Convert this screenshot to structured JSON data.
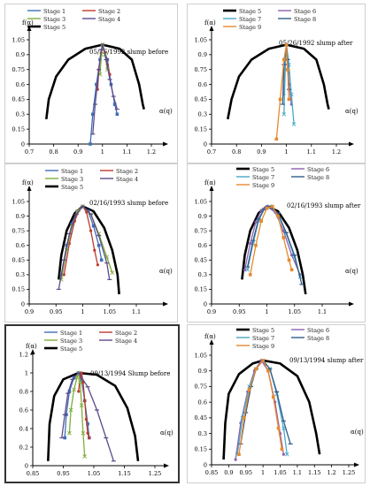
{
  "colors": {
    "Stage 1": "#3f6fb5",
    "Stage 2": "#c0392b",
    "Stage 3": "#7fae3a",
    "Stage 4": "#5d4a8c",
    "Stage 5": "#000000",
    "Stage 6": "#8e5fb0",
    "Stage 7": "#4aa8c6",
    "Stage 8": "#2f5d8a",
    "Stage 9": "#e8892e",
    "axis": "#000000"
  },
  "panels": [
    {
      "title": "05/26/1992 slump before",
      "xlabel": "α(q)",
      "ylabel": "f(α)",
      "legend": [
        [
          "Stage 1",
          "Stage 2"
        ],
        [
          "Stage 3",
          "Stage 4"
        ],
        [
          "Stage 5"
        ]
      ],
      "xticks": [
        "0.7",
        "0.8",
        "0.9",
        "1",
        "1.1",
        "1.2"
      ],
      "yticks": [
        "0",
        "0.15",
        "0.3",
        "0.45",
        "0.6",
        "0.75",
        "0.9",
        "1.05"
      ]
    },
    {
      "title": "05/26/1992 slump after",
      "xlabel": "α(q)",
      "ylabel": "f(α)",
      "legend": [
        [
          "Stage 5",
          "Stage 6"
        ],
        [
          "Stage 7",
          "Stage 8"
        ],
        [
          "Stage 9"
        ]
      ],
      "xticks": [
        "0.7",
        "0.8",
        "0.9",
        "1",
        "1.1",
        "1.2"
      ],
      "yticks": [
        "0",
        "0.15",
        "0.3",
        "0.45",
        "0.6",
        "0.75",
        "0.9",
        "1.05"
      ]
    },
    {
      "title": "02/16/1993 slump before",
      "xlabel": "α(q)",
      "ylabel": "f(α)",
      "legend": [
        [
          "Stage 1",
          "Stage 2"
        ],
        [
          "Stage 3",
          "Stage 4"
        ],
        [
          "Stage 5"
        ]
      ],
      "xticks": [
        "0.9",
        "0.95",
        "1",
        "1.05",
        "1.1"
      ],
      "yticks": [
        "0",
        "0.15",
        "0.3",
        "0.45",
        "0.6",
        "0.75",
        "0.9",
        "1.05"
      ]
    },
    {
      "title": "02/16/1993 slump after",
      "xlabel": "α(q)",
      "ylabel": "f(α)",
      "legend": [
        [
          "Stage 5",
          "Stage 6"
        ],
        [
          "Stage 7",
          "Stage 8"
        ],
        [
          "Stage 9"
        ]
      ],
      "xticks": [
        "0.9",
        "0.95",
        "1",
        "1.05",
        "1.1"
      ],
      "yticks": [
        "0",
        "0.15",
        "0.3",
        "0.45",
        "0.6",
        "0.75",
        "0.9",
        "1.05"
      ]
    },
    {
      "title": "09/13/1994 Slump before",
      "xlabel": "α(q)",
      "ylabel": "f(α)",
      "legend": [
        [
          "Stage 1",
          "Stage 2"
        ],
        [
          "Stage 3",
          "Stage 4"
        ],
        [
          "Stage 5"
        ]
      ],
      "xticks": [
        "0.85",
        "0.95",
        "1.05",
        "1.15",
        "1.25"
      ],
      "yticks": [
        "0",
        "0.2",
        "0.4",
        "0.6",
        "0.8",
        "1",
        "1.2"
      ]
    },
    {
      "title": "09/13/1994 slump after",
      "xlabel": "α(q)",
      "ylabel": "f(α)",
      "legend": [
        [
          "Stage 5",
          "Stage 6"
        ],
        [
          "Stage 7",
          "Stage 8"
        ],
        [
          "Stage 9"
        ]
      ],
      "xticks": [
        "0.85",
        "0.9",
        "0.95",
        "1",
        "1.05",
        "1.1",
        "1.15",
        "1.2",
        "1.25"
      ],
      "yticks": [
        "0",
        "0.15",
        "0.3",
        "0.45",
        "0.6",
        "0.75",
        "0.9",
        "1.05"
      ]
    }
  ],
  "chart_data": [
    {
      "type": "line",
      "title": "05/26/1992 slump before",
      "xlabel": "α(q)",
      "ylabel": "f(α)",
      "xlim": [
        0.7,
        1.2
      ],
      "ylim": [
        0,
        1.05
      ],
      "series": [
        {
          "name": "Stage 1",
          "x": [
            0.95,
            0.96,
            0.975,
            0.99,
            1.0,
            1.02,
            1.035,
            1.05,
            1.06
          ],
          "y": [
            0.0,
            0.3,
            0.6,
            0.85,
            1.0,
            0.85,
            0.6,
            0.4,
            0.3
          ]
        },
        {
          "name": "Stage 2",
          "x": [
            0.98,
            0.985,
            0.995,
            1.0,
            1.01,
            1.02,
            1.03
          ],
          "y": [
            0.55,
            0.75,
            0.92,
            1.0,
            0.92,
            0.8,
            0.7
          ]
        },
        {
          "name": "Stage 3",
          "x": [
            0.99,
            0.995,
            1.0,
            1.01,
            1.02
          ],
          "y": [
            0.7,
            0.9,
            1.0,
            0.9,
            0.75
          ]
        },
        {
          "name": "Stage 4",
          "x": [
            0.96,
            0.97,
            0.985,
            0.995,
            1.0,
            1.015,
            1.03,
            1.045,
            1.06
          ],
          "y": [
            0.1,
            0.4,
            0.75,
            0.95,
            1.0,
            0.85,
            0.65,
            0.48,
            0.35
          ]
        },
        {
          "name": "Stage 5",
          "x": [
            0.77,
            0.78,
            0.81,
            0.86,
            0.93,
            1.0,
            1.07,
            1.12,
            1.15,
            1.165,
            1.17
          ],
          "y": [
            0.25,
            0.45,
            0.68,
            0.85,
            0.96,
            1.0,
            0.96,
            0.85,
            0.6,
            0.4,
            0.35
          ]
        }
      ]
    },
    {
      "type": "line",
      "title": "05/26/1992 slump after",
      "xlabel": "α(q)",
      "ylabel": "f(α)",
      "xlim": [
        0.7,
        1.2
      ],
      "ylim": [
        0,
        1.05
      ],
      "series": [
        {
          "name": "Stage 5",
          "x": [
            0.765,
            0.78,
            0.81,
            0.86,
            0.93,
            1.0,
            1.07,
            1.12,
            1.15,
            1.165,
            1.17
          ],
          "y": [
            0.25,
            0.45,
            0.68,
            0.85,
            0.96,
            1.0,
            0.96,
            0.85,
            0.6,
            0.4,
            0.35
          ]
        },
        {
          "name": "Stage 6",
          "x": [
            0.99,
            0.995,
            1.0,
            1.005,
            1.01,
            1.02
          ],
          "y": [
            0.5,
            0.8,
            1.0,
            0.85,
            0.6,
            0.4
          ]
        },
        {
          "name": "Stage 7",
          "x": [
            0.99,
            0.995,
            1.0,
            1.01,
            1.02,
            1.03
          ],
          "y": [
            0.3,
            0.75,
            1.0,
            0.8,
            0.5,
            0.2
          ]
        },
        {
          "name": "Stage 8",
          "x": [
            0.985,
            0.99,
            1.0,
            1.005,
            1.01
          ],
          "y": [
            0.4,
            0.8,
            1.0,
            0.85,
            0.55
          ]
        },
        {
          "name": "Stage 9",
          "x": [
            0.96,
            0.975,
            0.99,
            1.0,
            1.005,
            1.01
          ],
          "y": [
            0.05,
            0.45,
            0.85,
            1.0,
            0.75,
            0.45
          ]
        }
      ]
    },
    {
      "type": "line",
      "title": "02/16/1993 slump before",
      "xlabel": "α(q)",
      "ylabel": "f(α)",
      "xlim": [
        0.9,
        1.1
      ],
      "ylim": [
        0,
        1.05
      ],
      "series": [
        {
          "name": "Stage 1",
          "x": [
            0.96,
            0.97,
            0.98,
            0.99,
            1.0,
            1.01,
            1.02,
            1.03,
            1.035
          ],
          "y": [
            0.3,
            0.6,
            0.82,
            0.95,
            1.0,
            0.95,
            0.8,
            0.6,
            0.45
          ]
        },
        {
          "name": "Stage 2",
          "x": [
            0.965,
            0.975,
            0.985,
            0.993,
            1.0,
            1.007,
            1.015,
            1.022,
            1.028
          ],
          "y": [
            0.3,
            0.62,
            0.85,
            0.96,
            1.0,
            0.94,
            0.75,
            0.55,
            0.4
          ]
        },
        {
          "name": "Stage 3",
          "x": [
            0.96,
            0.97,
            0.98,
            0.99,
            1.0,
            1.015,
            1.03,
            1.045,
            1.055
          ],
          "y": [
            0.25,
            0.55,
            0.8,
            0.95,
            1.0,
            0.92,
            0.72,
            0.48,
            0.32
          ]
        },
        {
          "name": "Stage 4",
          "x": [
            0.955,
            0.965,
            0.975,
            0.988,
            1.0,
            1.015,
            1.03,
            1.045,
            1.05
          ],
          "y": [
            0.15,
            0.45,
            0.72,
            0.92,
            1.0,
            0.92,
            0.7,
            0.42,
            0.25
          ]
        },
        {
          "name": "Stage 5",
          "x": [
            0.955,
            0.96,
            0.97,
            0.985,
            1.0,
            1.02,
            1.04,
            1.055,
            1.065,
            1.068
          ],
          "y": [
            0.25,
            0.5,
            0.75,
            0.93,
            1.0,
            0.95,
            0.78,
            0.55,
            0.3,
            0.1
          ]
        }
      ]
    },
    {
      "type": "line",
      "title": "02/16/1993 slump after",
      "xlabel": "α(q)",
      "ylabel": "f(α)",
      "xlim": [
        0.9,
        1.1
      ],
      "ylim": [
        0,
        1.05
      ],
      "series": [
        {
          "name": "Stage 5",
          "x": [
            0.955,
            0.96,
            0.97,
            0.985,
            1.0,
            1.02,
            1.04,
            1.055,
            1.065,
            1.07
          ],
          "y": [
            0.25,
            0.5,
            0.75,
            0.93,
            1.0,
            0.95,
            0.78,
            0.55,
            0.3,
            0.1
          ]
        },
        {
          "name": "Stage 6",
          "x": [
            0.96,
            0.97,
            0.98,
            0.99,
            1.0,
            1.015,
            1.03,
            1.045,
            1.06
          ],
          "y": [
            0.35,
            0.62,
            0.84,
            0.96,
            1.0,
            0.94,
            0.75,
            0.5,
            0.3
          ]
        },
        {
          "name": "Stage 7",
          "x": [
            0.965,
            0.975,
            0.985,
            0.995,
            1.005,
            1.02,
            1.035,
            1.05,
            1.06
          ],
          "y": [
            0.35,
            0.62,
            0.85,
            0.97,
            1.0,
            0.92,
            0.72,
            0.48,
            0.28
          ]
        },
        {
          "name": "Stage 8",
          "x": [
            0.965,
            0.975,
            0.985,
            0.995,
            1.005,
            1.02,
            1.035,
            1.05,
            1.063
          ],
          "y": [
            0.38,
            0.65,
            0.87,
            0.97,
            1.0,
            0.93,
            0.73,
            0.5,
            0.2
          ]
        },
        {
          "name": "Stage 9",
          "x": [
            0.97,
            0.98,
            0.99,
            1.0,
            1.01,
            1.02,
            1.03,
            1.04,
            1.045
          ],
          "y": [
            0.3,
            0.6,
            0.85,
            0.98,
            1.0,
            0.9,
            0.68,
            0.45,
            0.35
          ]
        }
      ]
    },
    {
      "type": "line",
      "title": "09/13/1994 Slump before",
      "xlabel": "α(q)",
      "ylabel": "f(α)",
      "xlim": [
        0.85,
        1.25
      ],
      "ylim": [
        0,
        1.2
      ],
      "series": [
        {
          "name": "Stage 1",
          "x": [
            0.955,
            0.96,
            0.97,
            0.985,
            1.0,
            1.01,
            1.02,
            1.03,
            1.035
          ],
          "y": [
            0.3,
            0.55,
            0.8,
            0.95,
            1.0,
            0.92,
            0.7,
            0.45,
            0.3
          ]
        },
        {
          "name": "Stage 2",
          "x": [
            1.0,
            1.005,
            1.01,
            1.015,
            1.02,
            1.025,
            1.03,
            1.035
          ],
          "y": [
            0.8,
            0.95,
            1.0,
            0.9,
            0.7,
            0.5,
            0.35,
            0.3
          ]
        },
        {
          "name": "Stage 3",
          "x": [
            0.97,
            0.975,
            0.985,
            0.995,
            1.0,
            1.005,
            1.01,
            1.015,
            1.02
          ],
          "y": [
            0.35,
            0.6,
            0.82,
            0.95,
            1.0,
            0.9,
            0.65,
            0.35,
            0.1
          ]
        },
        {
          "name": "Stage 4",
          "x": [
            0.945,
            0.955,
            0.965,
            0.98,
            1.0,
            1.03,
            1.06,
            1.09,
            1.115
          ],
          "y": [
            0.3,
            0.55,
            0.78,
            0.93,
            1.0,
            0.85,
            0.6,
            0.3,
            0.05
          ]
        },
        {
          "name": "Stage 5",
          "x": [
            0.9,
            0.905,
            0.92,
            0.95,
            1.0,
            1.06,
            1.12,
            1.16,
            1.185,
            1.195
          ],
          "y": [
            0.05,
            0.45,
            0.75,
            0.93,
            1.0,
            0.98,
            0.86,
            0.62,
            0.32,
            0.05
          ]
        }
      ]
    },
    {
      "type": "line",
      "title": "09/13/1994 slump after",
      "xlabel": "α(q)",
      "ylabel": "f(α)",
      "xlim": [
        0.85,
        1.25
      ],
      "ylim": [
        0,
        1.05
      ],
      "series": [
        {
          "name": "Stage 5",
          "x": [
            0.885,
            0.89,
            0.9,
            0.93,
            0.97,
            1.0,
            1.05,
            1.1,
            1.135,
            1.155,
            1.165
          ],
          "y": [
            0.05,
            0.4,
            0.68,
            0.87,
            0.97,
            1.0,
            0.97,
            0.85,
            0.6,
            0.3,
            0.1
          ]
        },
        {
          "name": "Stage 6",
          "x": [
            0.92,
            0.935,
            0.955,
            0.975,
            0.995,
            1.015,
            1.035,
            1.05,
            1.06
          ],
          "y": [
            0.05,
            0.4,
            0.7,
            0.9,
            1.0,
            0.9,
            0.6,
            0.3,
            0.1
          ]
        },
        {
          "name": "Stage 7",
          "x": [
            0.925,
            0.94,
            0.96,
            0.98,
            1.0,
            1.02,
            1.04,
            1.06,
            1.07
          ],
          "y": [
            0.1,
            0.45,
            0.75,
            0.92,
            1.0,
            0.92,
            0.68,
            0.35,
            0.1
          ]
        },
        {
          "name": "Stage 8",
          "x": [
            0.935,
            0.95,
            0.965,
            0.98,
            1.0,
            1.02,
            1.04,
            1.06,
            1.08
          ],
          "y": [
            0.2,
            0.5,
            0.75,
            0.92,
            1.0,
            0.92,
            0.7,
            0.42,
            0.2
          ]
        },
        {
          "name": "Stage 9",
          "x": [
            0.93,
            0.945,
            0.96,
            0.98,
            1.0,
            1.015,
            1.03,
            1.045,
            1.055
          ],
          "y": [
            0.1,
            0.45,
            0.72,
            0.92,
            1.0,
            0.9,
            0.65,
            0.35,
            0.15
          ]
        }
      ]
    }
  ]
}
